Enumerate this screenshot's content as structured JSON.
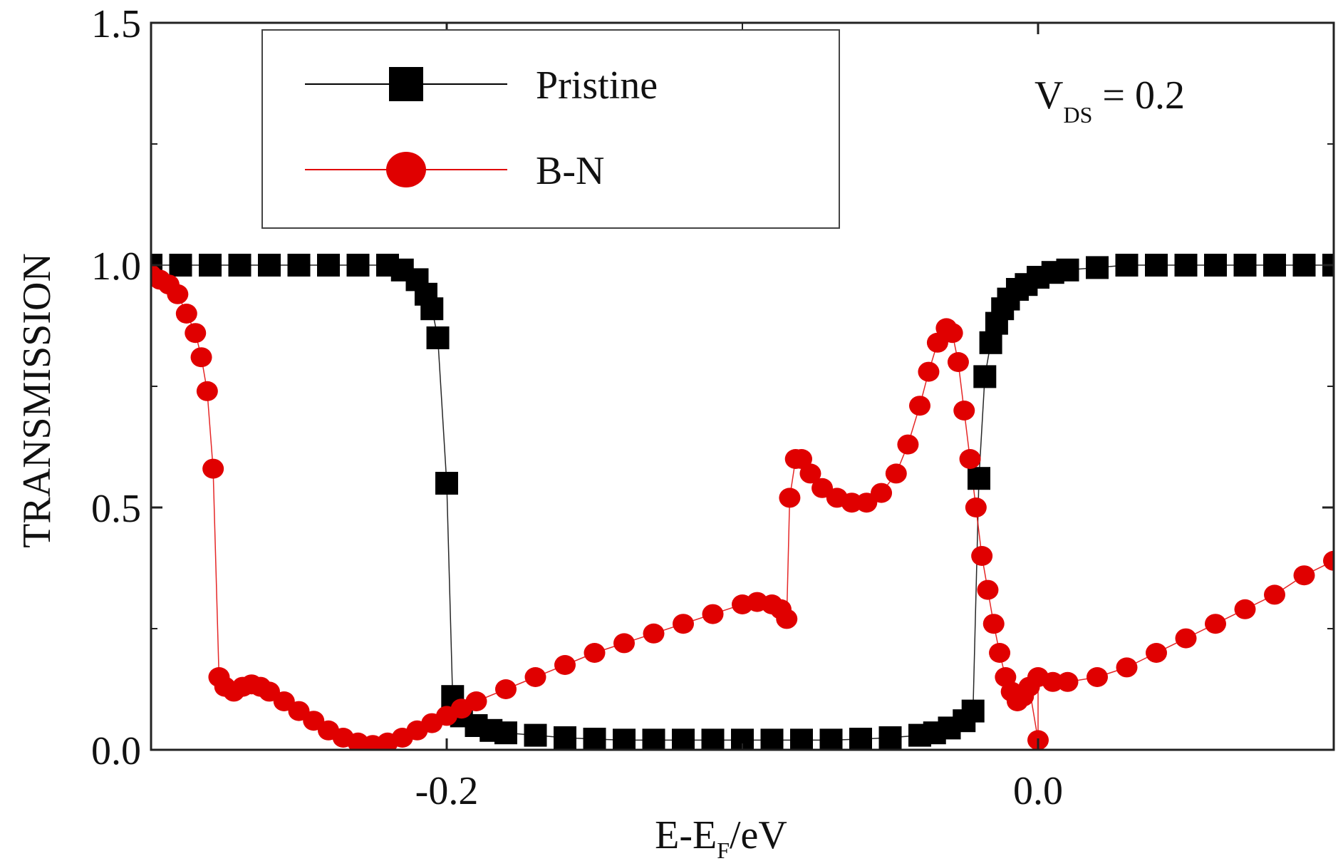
{
  "chart_data": {
    "type": "scatter",
    "xlabel_main": "E-E",
    "xlabel_sub": "F",
    "xlabel_tail": "/eV",
    "ylabel": "TRANSMISSION",
    "xlim": [
      -0.3,
      0.1
    ],
    "ylim": [
      0,
      1.5
    ],
    "x_ticks": [
      -0.2,
      0.0
    ],
    "x_tick_labels": [
      "-0.2",
      "0.0"
    ],
    "y_ticks": [
      0,
      0.5,
      1.0,
      1.5
    ],
    "y_tick_labels": [
      "0.0",
      "0.5",
      "1.0",
      "1.5"
    ],
    "annotation": {
      "main": "V",
      "sub": "DS",
      "tail": " = 0.2"
    },
    "legend_position": "top-left",
    "colors": {
      "pristine": "#000000",
      "bn": "#e00000"
    },
    "series": [
      {
        "name": "Pristine",
        "marker": "square",
        "color": "#000000",
        "points": [
          [
            -0.3,
            1.0
          ],
          [
            -0.29,
            1.0
          ],
          [
            -0.28,
            1.0
          ],
          [
            -0.27,
            1.0
          ],
          [
            -0.26,
            1.0
          ],
          [
            -0.25,
            1.0
          ],
          [
            -0.24,
            1.0
          ],
          [
            -0.23,
            1.0
          ],
          [
            -0.22,
            1.0
          ],
          [
            -0.215,
            0.99
          ],
          [
            -0.21,
            0.97
          ],
          [
            -0.207,
            0.94
          ],
          [
            -0.205,
            0.91
          ],
          [
            -0.203,
            0.85
          ],
          [
            -0.2,
            0.55
          ],
          [
            -0.198,
            0.11
          ],
          [
            -0.195,
            0.07
          ],
          [
            -0.19,
            0.05
          ],
          [
            -0.185,
            0.04
          ],
          [
            -0.18,
            0.035
          ],
          [
            -0.17,
            0.03
          ],
          [
            -0.16,
            0.025
          ],
          [
            -0.15,
            0.022
          ],
          [
            -0.14,
            0.02
          ],
          [
            -0.13,
            0.02
          ],
          [
            -0.12,
            0.02
          ],
          [
            -0.11,
            0.02
          ],
          [
            -0.1,
            0.02
          ],
          [
            -0.09,
            0.02
          ],
          [
            -0.08,
            0.02
          ],
          [
            -0.07,
            0.02
          ],
          [
            -0.06,
            0.022
          ],
          [
            -0.05,
            0.025
          ],
          [
            -0.04,
            0.03
          ],
          [
            -0.035,
            0.035
          ],
          [
            -0.03,
            0.045
          ],
          [
            -0.025,
            0.06
          ],
          [
            -0.022,
            0.08
          ],
          [
            -0.02,
            0.56
          ],
          [
            -0.018,
            0.77
          ],
          [
            -0.016,
            0.84
          ],
          [
            -0.014,
            0.88
          ],
          [
            -0.012,
            0.91
          ],
          [
            -0.01,
            0.93
          ],
          [
            -0.007,
            0.95
          ],
          [
            -0.004,
            0.96
          ],
          [
            0.0,
            0.975
          ],
          [
            0.005,
            0.985
          ],
          [
            0.01,
            0.99
          ],
          [
            0.02,
            0.995
          ],
          [
            0.03,
            1.0
          ],
          [
            0.04,
            1.0
          ],
          [
            0.05,
            1.0
          ],
          [
            0.06,
            1.0
          ],
          [
            0.07,
            1.0
          ],
          [
            0.08,
            1.0
          ],
          [
            0.09,
            1.0
          ],
          [
            0.1,
            1.0
          ]
        ]
      },
      {
        "name": "B-N",
        "marker": "circle",
        "color": "#e00000",
        "points": [
          [
            -0.3,
            0.98
          ],
          [
            -0.297,
            0.97
          ],
          [
            -0.294,
            0.96
          ],
          [
            -0.291,
            0.94
          ],
          [
            -0.288,
            0.9
          ],
          [
            -0.285,
            0.86
          ],
          [
            -0.283,
            0.81
          ],
          [
            -0.281,
            0.74
          ],
          [
            -0.279,
            0.58
          ],
          [
            -0.277,
            0.15
          ],
          [
            -0.275,
            0.13
          ],
          [
            -0.272,
            0.12
          ],
          [
            -0.269,
            0.13
          ],
          [
            -0.266,
            0.135
          ],
          [
            -0.263,
            0.13
          ],
          [
            -0.26,
            0.12
          ],
          [
            -0.255,
            0.1
          ],
          [
            -0.25,
            0.08
          ],
          [
            -0.245,
            0.06
          ],
          [
            -0.24,
            0.04
          ],
          [
            -0.235,
            0.025
          ],
          [
            -0.23,
            0.015
          ],
          [
            -0.225,
            0.01
          ],
          [
            -0.22,
            0.015
          ],
          [
            -0.215,
            0.025
          ],
          [
            -0.21,
            0.04
          ],
          [
            -0.205,
            0.055
          ],
          [
            -0.2,
            0.07
          ],
          [
            -0.195,
            0.085
          ],
          [
            -0.19,
            0.1
          ],
          [
            -0.18,
            0.125
          ],
          [
            -0.17,
            0.15
          ],
          [
            -0.16,
            0.175
          ],
          [
            -0.15,
            0.2
          ],
          [
            -0.14,
            0.22
          ],
          [
            -0.13,
            0.24
          ],
          [
            -0.12,
            0.26
          ],
          [
            -0.11,
            0.28
          ],
          [
            -0.1,
            0.3
          ],
          [
            -0.095,
            0.305
          ],
          [
            -0.09,
            0.3
          ],
          [
            -0.087,
            0.29
          ],
          [
            -0.085,
            0.27
          ],
          [
            -0.084,
            0.52
          ],
          [
            -0.082,
            0.6
          ],
          [
            -0.08,
            0.6
          ],
          [
            -0.077,
            0.57
          ],
          [
            -0.073,
            0.54
          ],
          [
            -0.068,
            0.52
          ],
          [
            -0.063,
            0.51
          ],
          [
            -0.058,
            0.51
          ],
          [
            -0.053,
            0.53
          ],
          [
            -0.048,
            0.57
          ],
          [
            -0.044,
            0.63
          ],
          [
            -0.04,
            0.71
          ],
          [
            -0.037,
            0.78
          ],
          [
            -0.034,
            0.84
          ],
          [
            -0.031,
            0.87
          ],
          [
            -0.029,
            0.86
          ],
          [
            -0.027,
            0.8
          ],
          [
            -0.025,
            0.7
          ],
          [
            -0.023,
            0.6
          ],
          [
            -0.021,
            0.5
          ],
          [
            -0.019,
            0.4
          ],
          [
            -0.017,
            0.33
          ],
          [
            -0.015,
            0.26
          ],
          [
            -0.013,
            0.2
          ],
          [
            -0.011,
            0.15
          ],
          [
            -0.009,
            0.12
          ],
          [
            -0.007,
            0.1
          ],
          [
            -0.005,
            0.11
          ],
          [
            -0.003,
            0.13
          ],
          [
            0.0,
            0.02
          ],
          [
            0.0,
            0.15
          ],
          [
            0.005,
            0.14
          ],
          [
            0.01,
            0.14
          ],
          [
            0.02,
            0.15
          ],
          [
            0.03,
            0.17
          ],
          [
            0.04,
            0.2
          ],
          [
            0.05,
            0.23
          ],
          [
            0.06,
            0.26
          ],
          [
            0.07,
            0.29
          ],
          [
            0.08,
            0.32
          ],
          [
            0.09,
            0.36
          ],
          [
            0.1,
            0.39
          ]
        ]
      }
    ]
  }
}
